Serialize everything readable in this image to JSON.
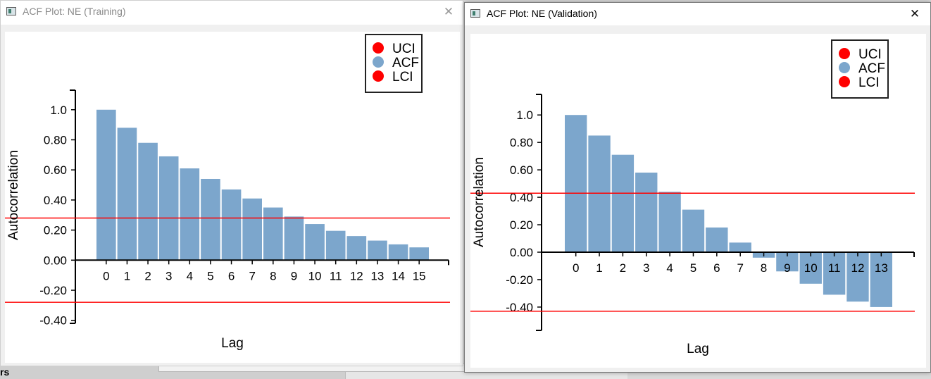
{
  "background": {
    "label": "rs"
  },
  "windows": [
    {
      "id": "train",
      "title": "ACF Plot: NE (Training)",
      "close_symbol": "✕",
      "chart_data": {
        "type": "bar",
        "xlabel": "Lag",
        "ylabel": "Autocorrelation",
        "x_ticks": [
          "0",
          "1",
          "2",
          "3",
          "4",
          "5",
          "6",
          "7",
          "8",
          "9",
          "10",
          "11",
          "12",
          "13",
          "14",
          "15"
        ],
        "y_ticks": [
          "1.0",
          "0.80",
          "0.60",
          "0.40",
          "0.20",
          "0.00",
          "-0.20",
          "-0.40"
        ],
        "ylim": [
          -0.42,
          1.13
        ],
        "values": [
          1.0,
          0.88,
          0.78,
          0.69,
          0.61,
          0.54,
          0.47,
          0.41,
          0.35,
          0.29,
          0.24,
          0.195,
          0.16,
          0.13,
          0.105,
          0.085
        ],
        "uci": 0.28,
        "lci": -0.28,
        "legend": [
          {
            "label": "UCI",
            "color": "#ff0000"
          },
          {
            "label": "ACF",
            "color": "#7ca6cc"
          },
          {
            "label": "LCI",
            "color": "#ff0000"
          }
        ],
        "bar_color": "#7ca6cc",
        "ci_color": "#ff0000"
      }
    },
    {
      "id": "val",
      "title": "ACF Plot: NE (Validation)",
      "close_symbol": "✕",
      "chart_data": {
        "type": "bar",
        "xlabel": "Lag",
        "ylabel": "Autocorrelation",
        "x_ticks": [
          "0",
          "1",
          "2",
          "3",
          "4",
          "5",
          "6",
          "7",
          "8",
          "9",
          "10",
          "11",
          "12",
          "13"
        ],
        "y_ticks": [
          "1.0",
          "0.80",
          "0.60",
          "0.40",
          "0.20",
          "0.00",
          "-0.20",
          "-0.40"
        ],
        "ylim": [
          -0.57,
          1.15
        ],
        "values": [
          1.0,
          0.85,
          0.71,
          0.58,
          0.44,
          0.31,
          0.18,
          0.07,
          -0.04,
          -0.14,
          -0.23,
          -0.31,
          -0.36,
          -0.4
        ],
        "uci": 0.43,
        "lci": -0.43,
        "legend": [
          {
            "label": "UCI",
            "color": "#ff0000"
          },
          {
            "label": "ACF",
            "color": "#7ca6cc"
          },
          {
            "label": "LCI",
            "color": "#ff0000"
          }
        ],
        "bar_color": "#7ca6cc",
        "ci_color": "#ff0000"
      }
    }
  ]
}
